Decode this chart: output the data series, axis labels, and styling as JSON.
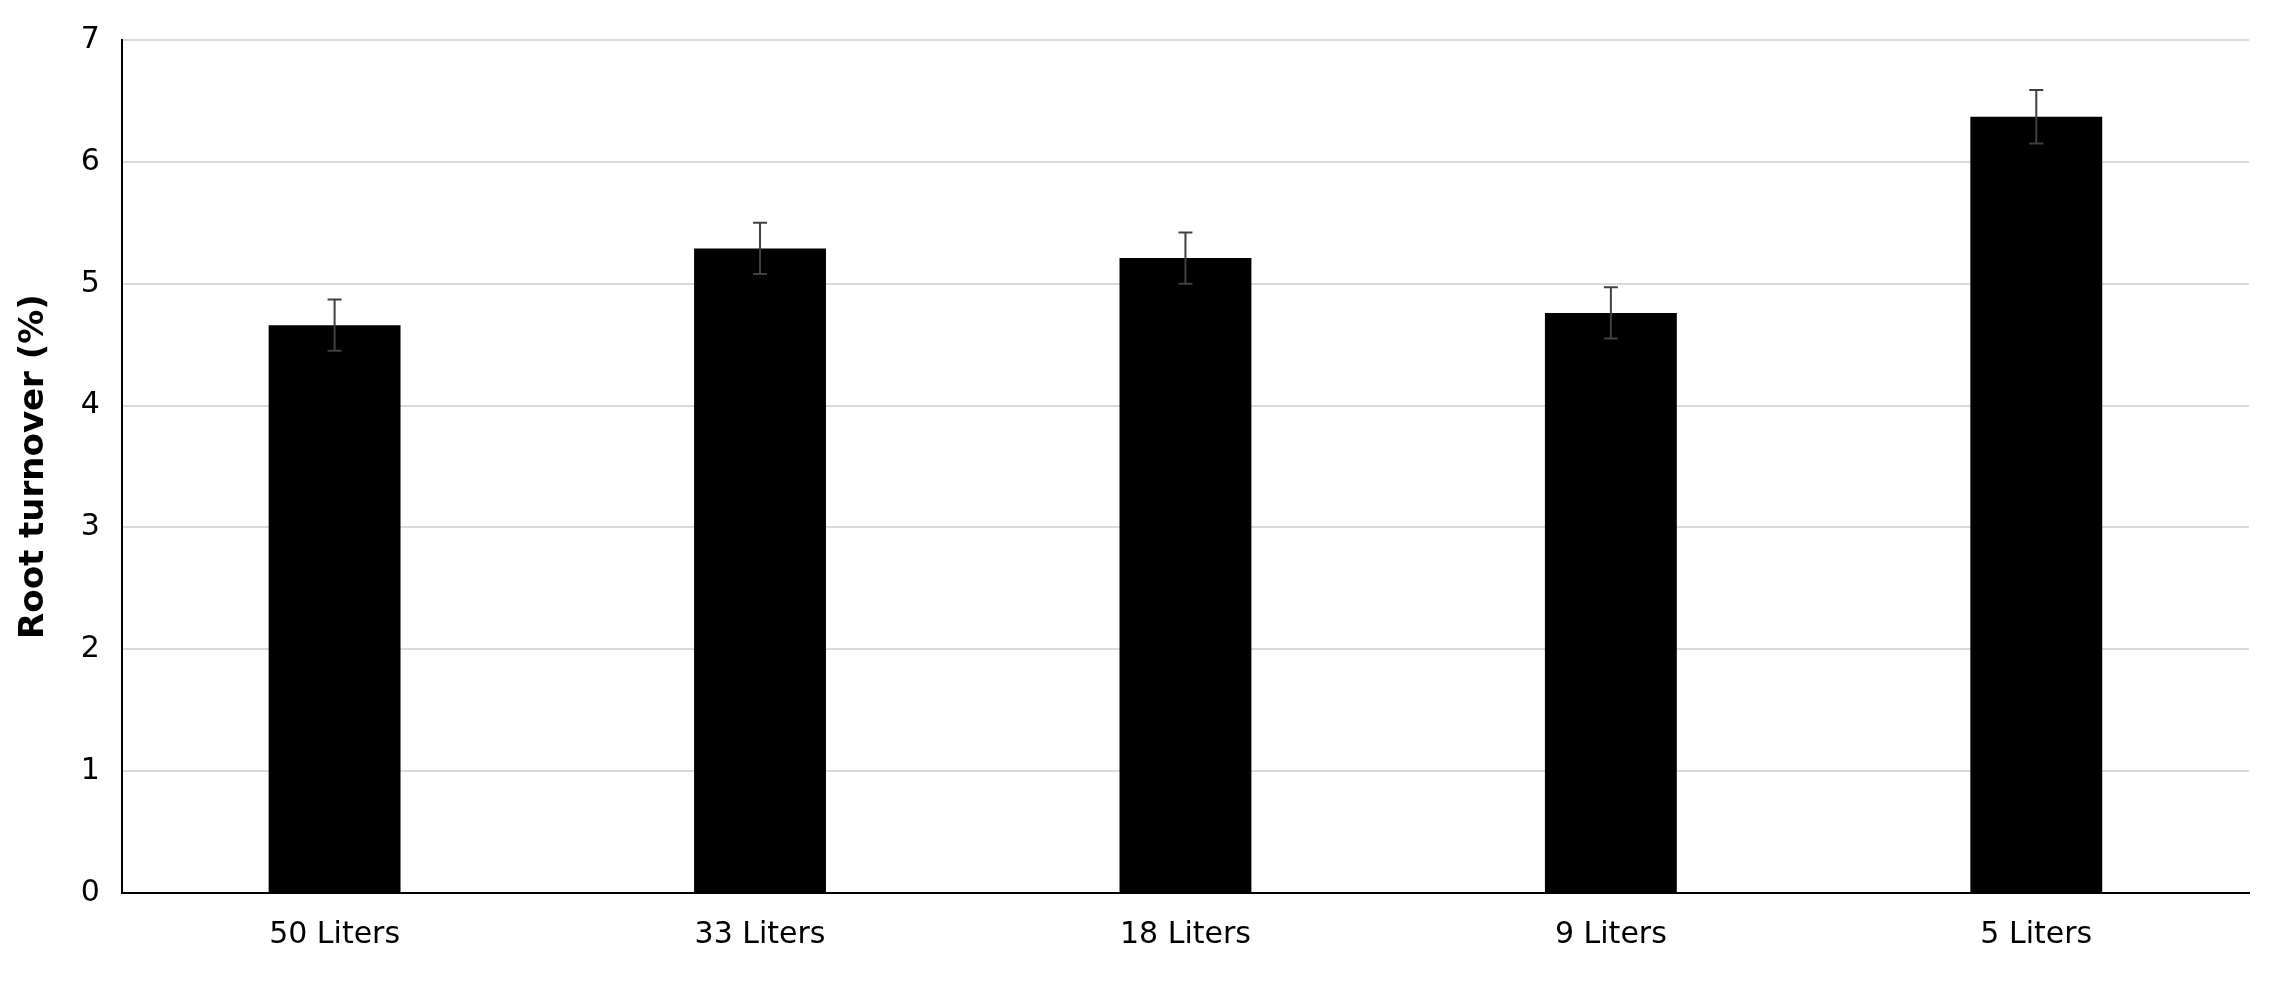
{
  "chart_data": {
    "type": "bar",
    "ylabel": "Root turnover (%)",
    "categories": [
      "50 Liters",
      "33 Liters",
      "18 Liters",
      "9 Liters",
      "5 Liters"
    ],
    "values": [
      4.66,
      5.29,
      5.21,
      4.76,
      6.37
    ],
    "errors": [
      0.21,
      0.21,
      0.21,
      0.21,
      0.22
    ],
    "color": "#000000",
    "ylim": [
      0,
      7
    ],
    "yticks": [
      0,
      1,
      2,
      3,
      4,
      5,
      6,
      7
    ],
    "grid": "y",
    "legend": false
  }
}
